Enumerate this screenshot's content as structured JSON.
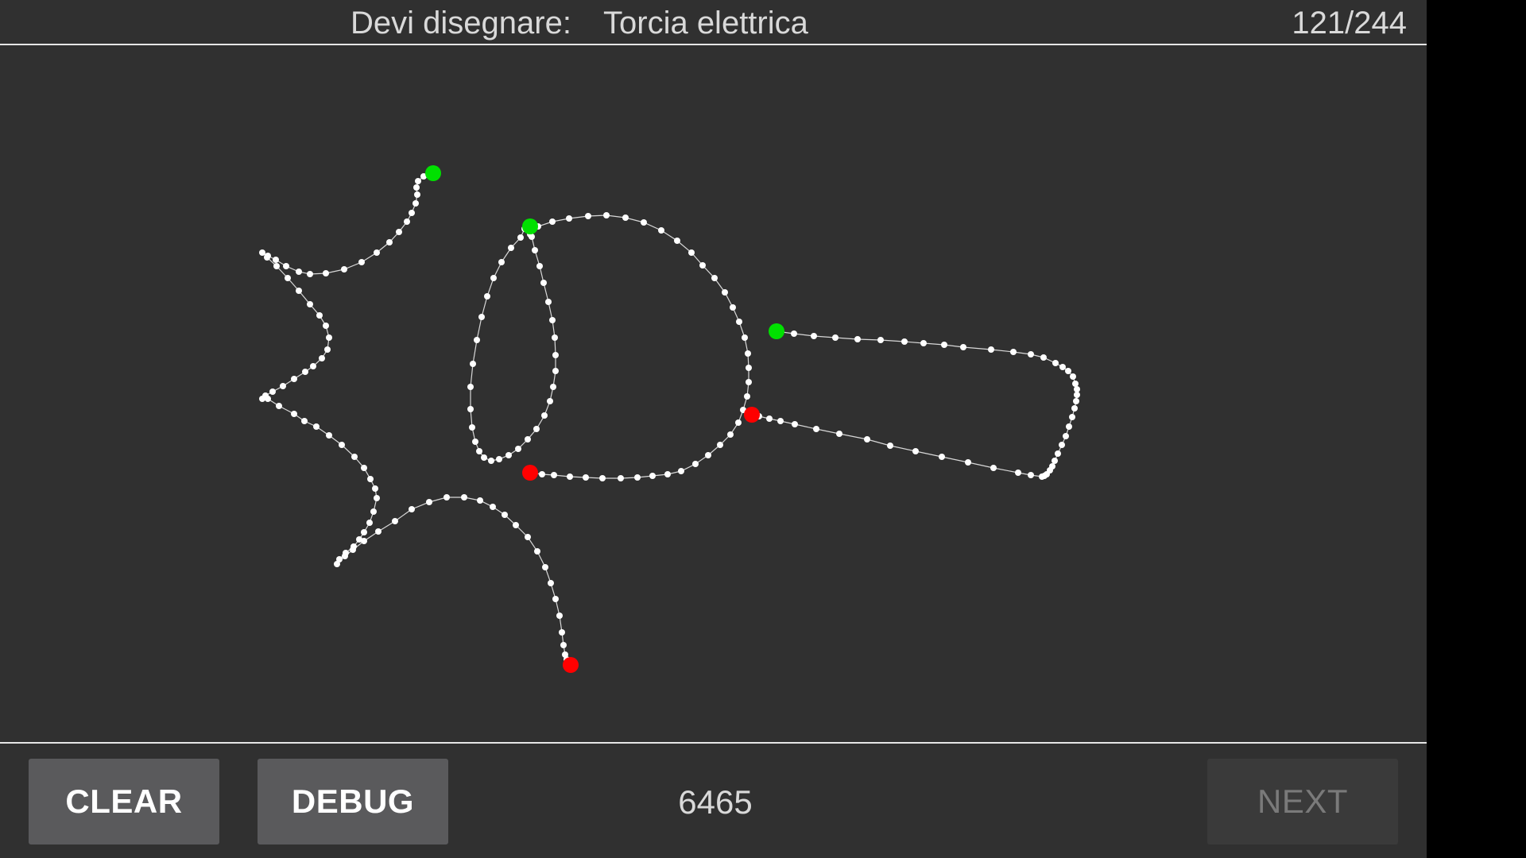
{
  "header": {
    "prompt_label": "Devi disegnare:",
    "prompt_word": "Torcia elettrica",
    "progress": "121/244"
  },
  "footer": {
    "clear_label": "CLEAR",
    "debug_label": "DEBUG",
    "score": "6465",
    "next_label": "NEXT"
  },
  "colors": {
    "background": "#303030",
    "stroke_point": "#ffffff",
    "stroke_line": "#d8d8d8",
    "start_marker": "#00e000",
    "end_marker": "#ff0000"
  }
}
